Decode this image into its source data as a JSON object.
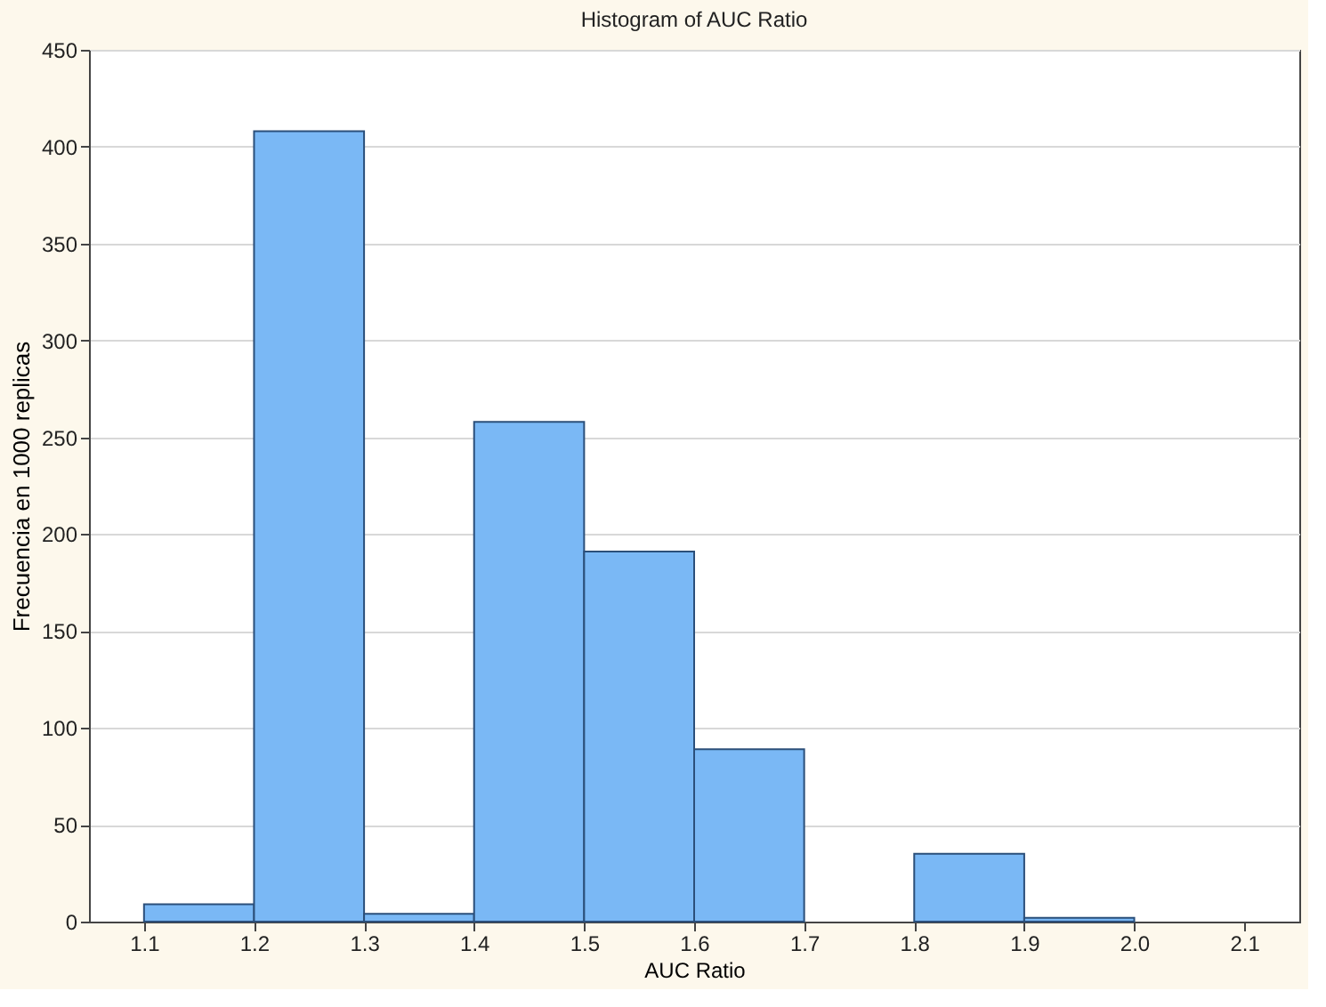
{
  "chart_data": {
    "type": "histogram",
    "title": "Histogram of AUC Ratio",
    "xlabel": "AUC Ratio",
    "ylabel": "Frecuencia en 1000 replicas",
    "bins": [
      1.1,
      1.2,
      1.3,
      1.4,
      1.5,
      1.6,
      1.7,
      1.8,
      1.9,
      2.0,
      2.1
    ],
    "values": [
      9,
      408,
      4,
      258,
      191,
      89,
      0,
      35,
      2,
      0
    ],
    "color": "#7ab8f5",
    "xlim": [
      1.05,
      2.15
    ],
    "ylim": [
      0,
      450
    ],
    "xticks": [
      1.1,
      1.2,
      1.3,
      1.4,
      1.5,
      1.6,
      1.7,
      1.8,
      1.9,
      {
        "value": 2.0,
        "label": "2.0"
      },
      2.1
    ],
    "yticks": [
      0,
      50,
      100,
      150,
      200,
      250,
      300,
      350,
      400,
      450
    ],
    "grid": "y"
  }
}
